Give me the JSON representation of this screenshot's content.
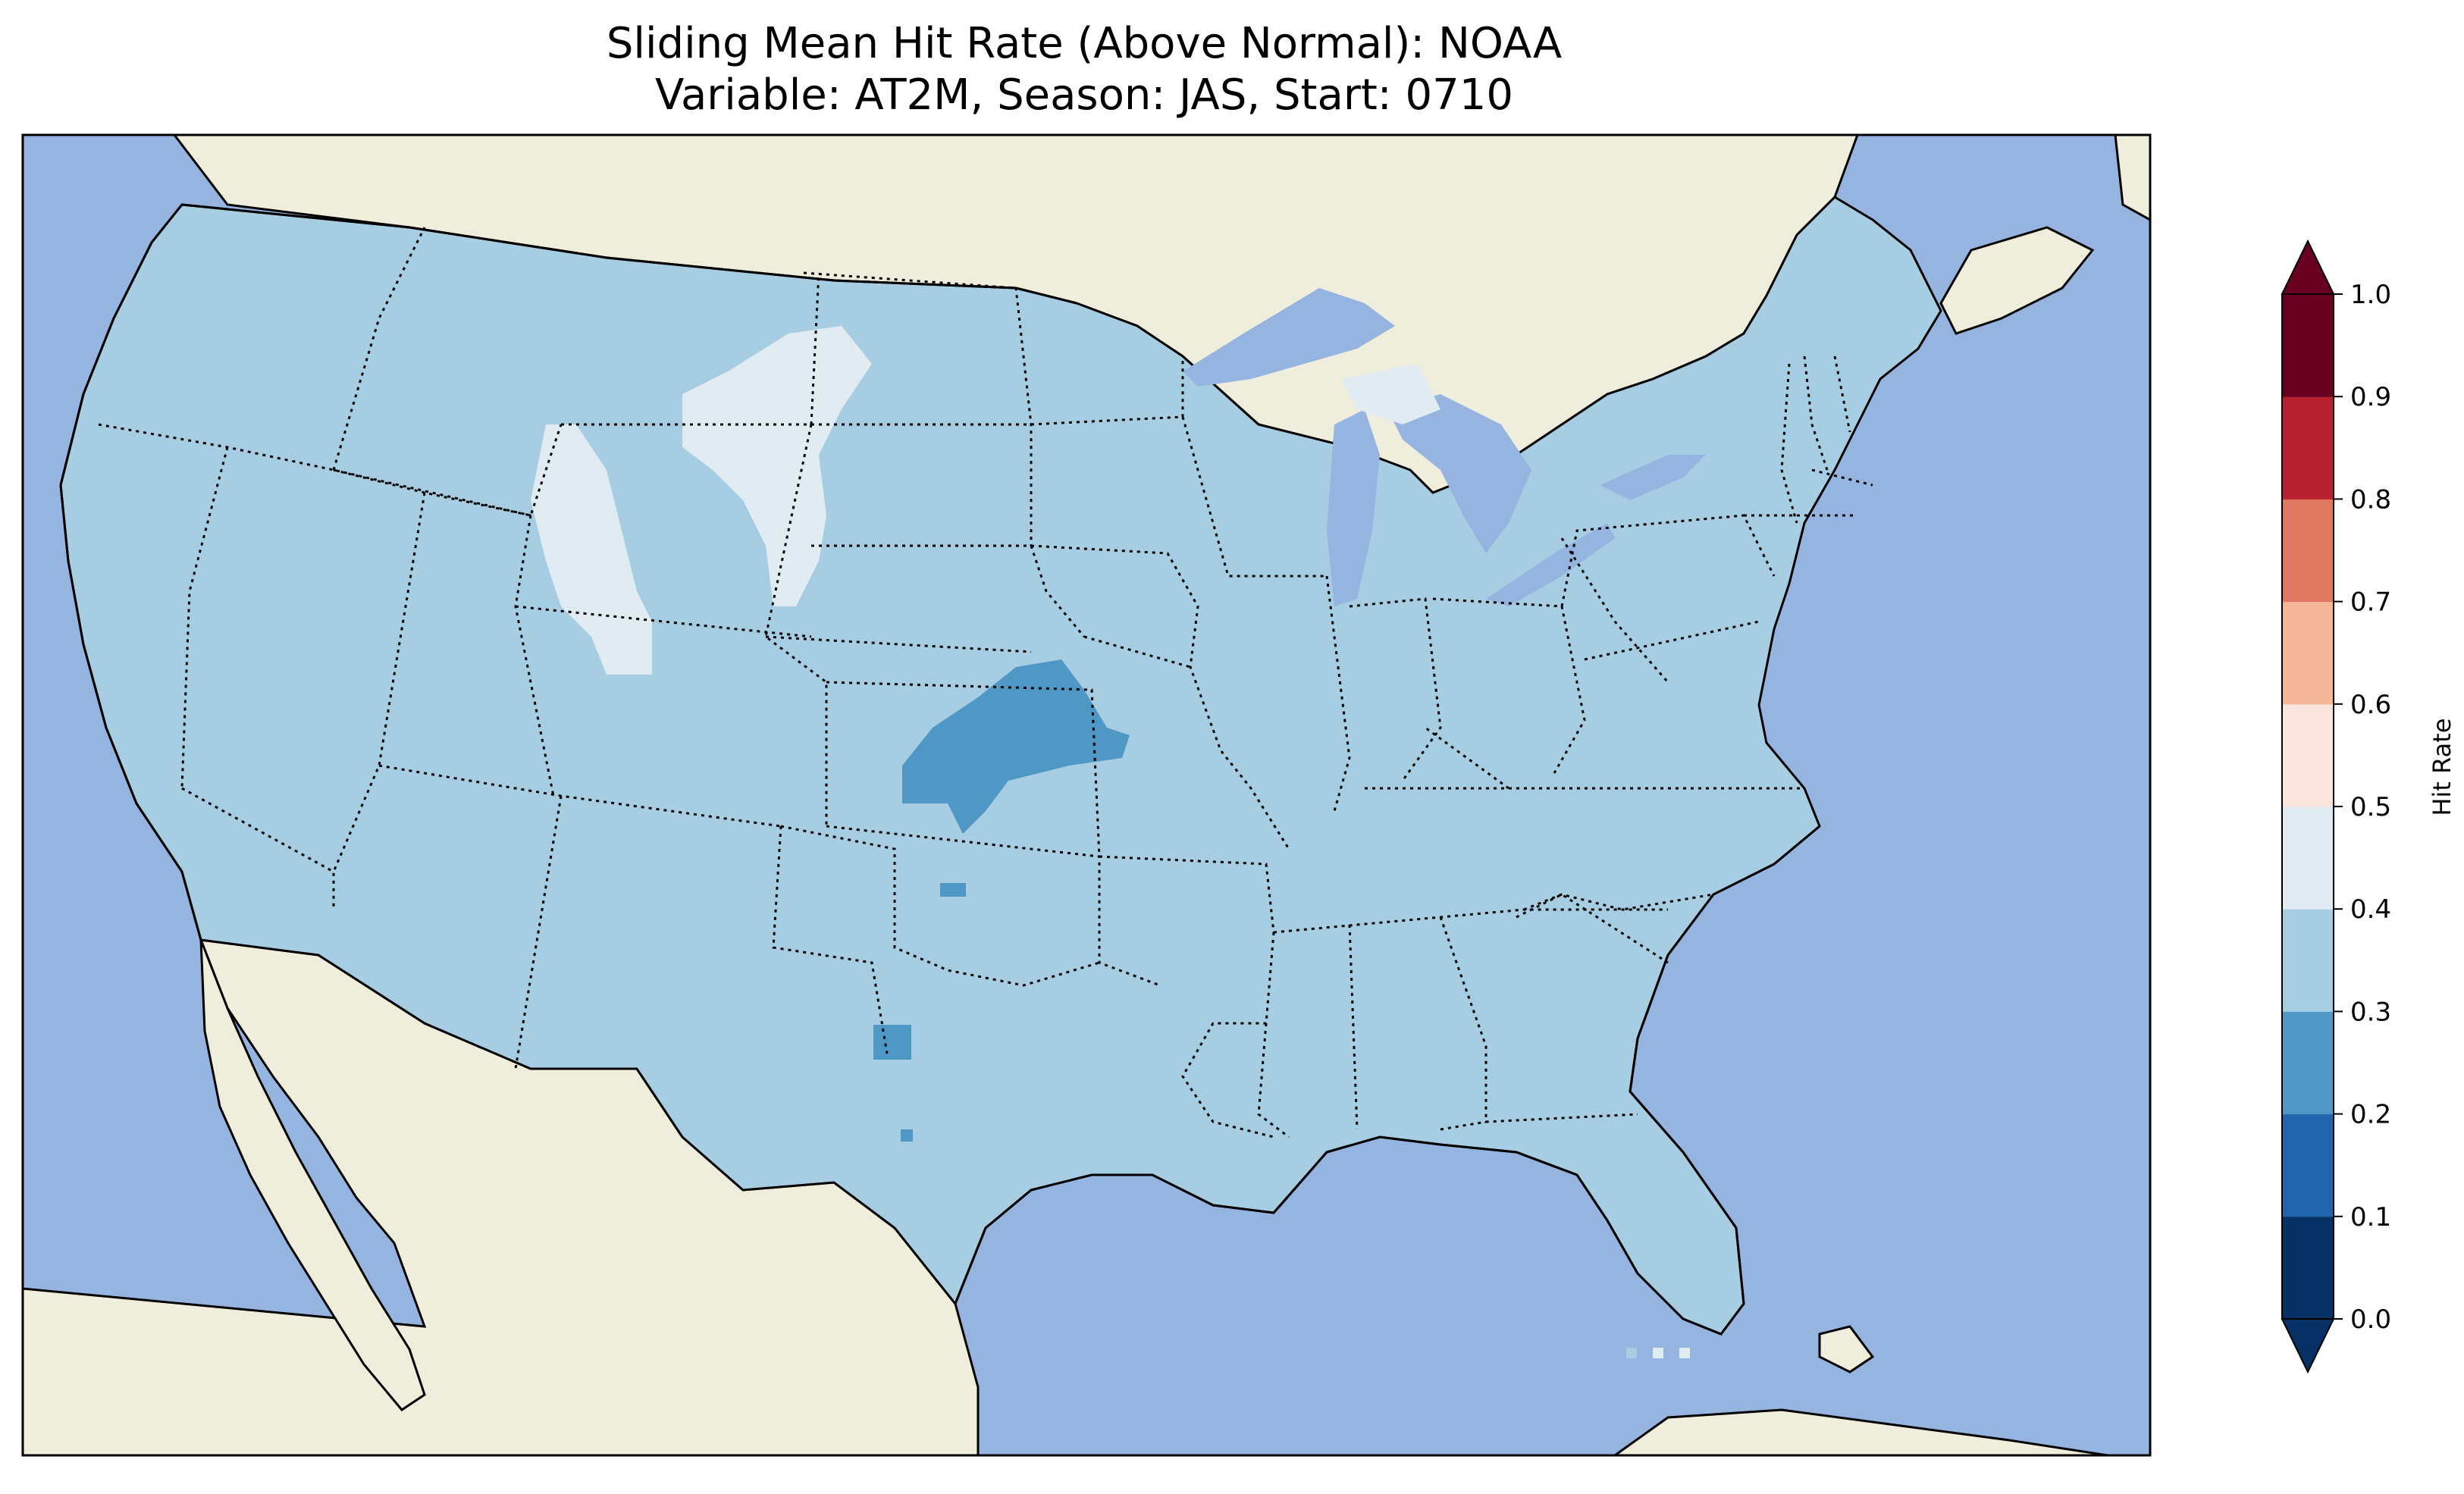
{
  "title": {
    "line1": "Sliding Mean Hit Rate (Above Normal): NOAA",
    "line2": "Variable: AT2M, Season: JAS, Start: 0710"
  },
  "colors": {
    "ocean": "#95b4e0",
    "land_foreign": "#efeddb",
    "hit_03_04": "#a7cde3",
    "hit_04_05": "#e0ebf2",
    "hit_02_03": "#4f98c6"
  },
  "colorbar": {
    "label": "Hit Rate",
    "ticks": [
      "0.0",
      "0.1",
      "0.2",
      "0.3",
      "0.4",
      "0.5",
      "0.6",
      "0.7",
      "0.8",
      "0.9",
      "1.0"
    ],
    "bins": [
      {
        "range": "0.0-0.1",
        "color": "#073064"
      },
      {
        "range": "0.1-0.2",
        "color": "#2166ac"
      },
      {
        "range": "0.2-0.3",
        "color": "#4f98c6"
      },
      {
        "range": "0.3-0.4",
        "color": "#a7cde3"
      },
      {
        "range": "0.4-0.5",
        "color": "#e0ebf2"
      },
      {
        "range": "0.5-0.6",
        "color": "#f9e5dc"
      },
      {
        "range": "0.6-0.7",
        "color": "#f6b798"
      },
      {
        "range": "0.7-0.8",
        "color": "#df7761"
      },
      {
        "range": "0.8-0.9",
        "color": "#b82230"
      },
      {
        "range": "0.9-1.0",
        "color": "#690021"
      }
    ],
    "extend": "both"
  }
}
